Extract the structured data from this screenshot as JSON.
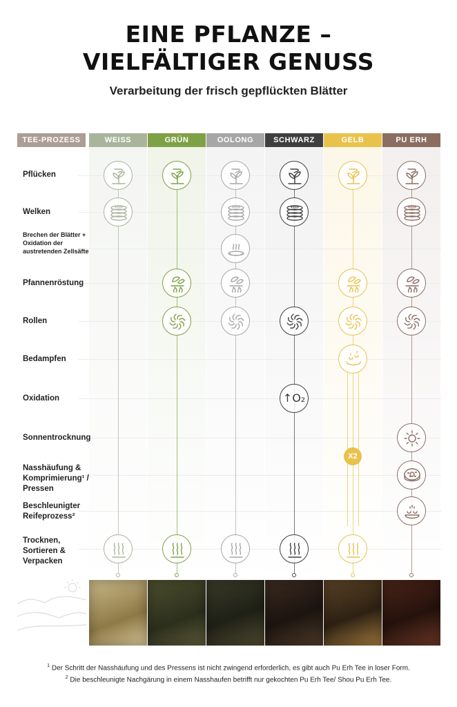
{
  "title_line1": "EINE PFLANZE –",
  "title_line2": "VIELFÄLTIGER GENUSS",
  "subtitle": "Verarbeitung der frisch gepflückten Blätter",
  "process_header": "TEE-PROZESS",
  "columns": [
    {
      "label": "WEISS",
      "color": "#a9b49c"
    },
    {
      "label": "GRÜN",
      "color": "#7ea145"
    },
    {
      "label": "OOLONG",
      "color": "#a6a6a6"
    },
    {
      "label": "SCHWARZ",
      "color": "#3f3f3f"
    },
    {
      "label": "GELB",
      "color": "#e9c24c"
    },
    {
      "label": "PU ERH",
      "color": "#8b6d62"
    }
  ],
  "header_color": "#ac9d95",
  "steps": [
    {
      "label": "Pflücken",
      "icon": "plant-icon",
      "in": [
        0,
        1,
        2,
        3,
        4,
        5
      ]
    },
    {
      "label": "Welken",
      "icon": "withering-trays-icon",
      "in": [
        0,
        2,
        3,
        5
      ]
    },
    {
      "label": "Brechen der Blätter + Oxidation der austretenden Zellsäfte",
      "icon": "steaming-dish-icon",
      "in": [
        2
      ]
    },
    {
      "label": "Pfannenröstung",
      "icon": "pan-roasting-icon",
      "in": [
        1,
        2,
        4,
        5
      ]
    },
    {
      "label": "Rollen",
      "icon": "rolling-spiral-icon",
      "in": [
        1,
        2,
        3,
        4,
        5
      ]
    },
    {
      "label": "Bedampfen",
      "icon": "steaming-icon",
      "in": [
        4
      ]
    },
    {
      "label": "Oxidation",
      "icon": "oxidation-icon",
      "in": [
        3
      ]
    },
    {
      "label": "Sonnentrocknung",
      "icon": "sun-icon",
      "in": [
        5
      ]
    },
    {
      "label": "Nasshäufung & Komprimierung¹ / Pressen",
      "icon": "pressed-cake-icon",
      "in": [
        5
      ]
    },
    {
      "label": "Beschleunigter Reifeprozess²",
      "icon": "aging-heap-icon",
      "in": [
        5
      ]
    },
    {
      "label": "Trocknen, Sortieren & Verpacken",
      "icon": "heat-drying-icon",
      "in": [
        0,
        1,
        2,
        3,
        4
      ]
    }
  ],
  "o2_text": "↑O₂",
  "repeat_badge": "X2",
  "footnote1": "Der Schritt der Nasshäufung und des Pressens ist nicht zwingend erforderlich, es gibt auch Pu Erh Tee in loser Form.",
  "footnote2": "Die beschleunigte Nachgärung in einem Nasshaufen betrifft nur gekochten Pu Erh Tee/ Shou Pu Erh Tee.",
  "footnote1_mark": "1",
  "footnote2_mark": "2"
}
